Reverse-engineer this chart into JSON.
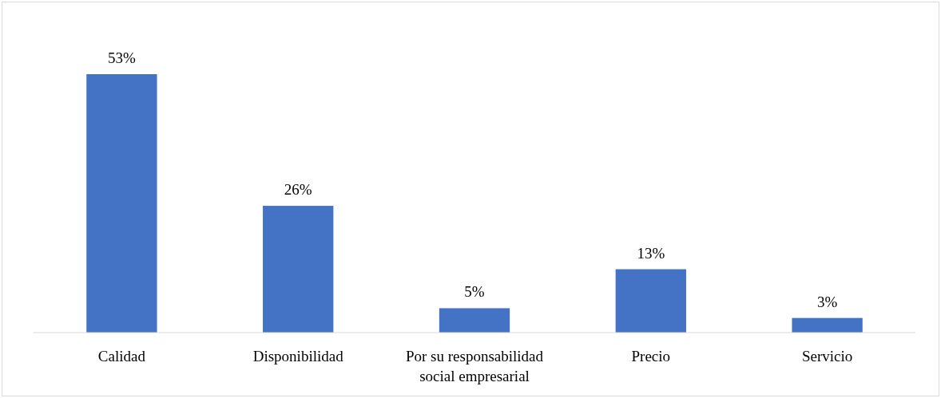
{
  "chart_data": {
    "type": "bar",
    "categories": [
      "Calidad",
      "Disponibilidad",
      "Por su responsabilidad social empresarial",
      "Precio",
      "Servicio"
    ],
    "values": [
      53,
      26,
      5,
      13,
      3
    ],
    "value_labels": [
      "53%",
      "26%",
      "5%",
      "13%",
      "3%"
    ],
    "color": "#4472c4"
  }
}
